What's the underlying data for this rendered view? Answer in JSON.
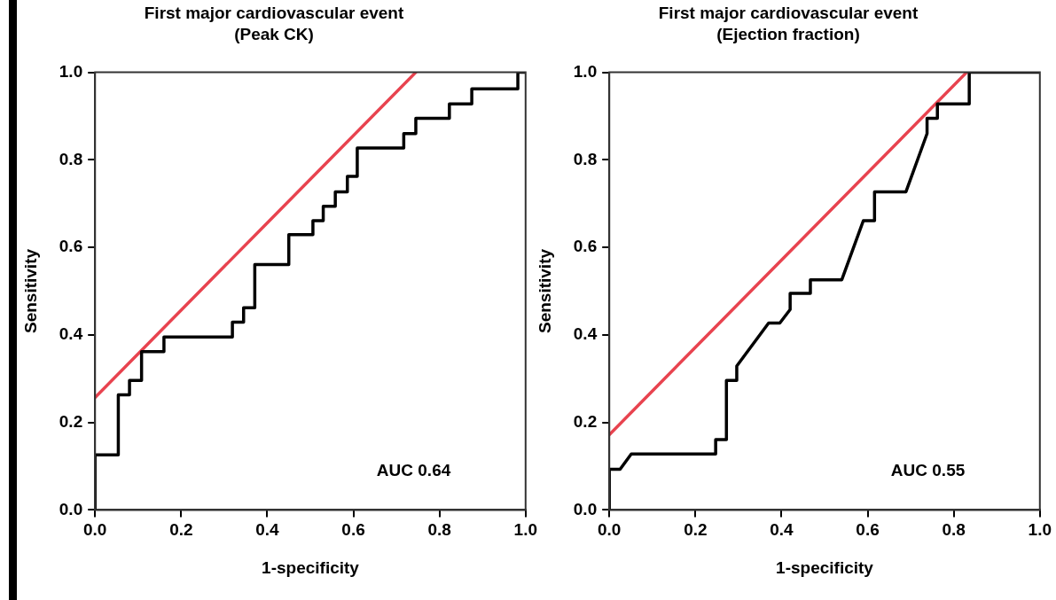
{
  "chart_data": [
    {
      "type": "line",
      "title": "First major cardiovascular event",
      "subtitle": "(Peak CK)",
      "xlabel": "1-specificity",
      "ylabel": "Sensitivity",
      "annotations": [
        "AUC 0.64"
      ],
      "xlim": [
        0,
        1
      ],
      "ylim": [
        0,
        1
      ],
      "xticks": [
        {
          "value": 0,
          "label": "0.0"
        },
        {
          "value": 0.2,
          "label": "0.2"
        },
        {
          "value": 0.4,
          "label": "0.4"
        },
        {
          "value": 0.6,
          "label": "0.6"
        },
        {
          "value": 0.8,
          "label": "0.8"
        },
        {
          "value": 1,
          "label": "1.0"
        }
      ],
      "yticks": [
        {
          "value": 0,
          "label": "0.0"
        },
        {
          "value": 0.2,
          "label": "0.2"
        },
        {
          "value": 0.4,
          "label": "0.4"
        },
        {
          "value": 0.6,
          "label": "0.6"
        },
        {
          "value": 0.8,
          "label": "0.8"
        },
        {
          "value": 1,
          "label": "1.0"
        }
      ],
      "grid": false,
      "legend": false,
      "marker": "none",
      "line_style": "solid",
      "series": [
        {
          "color": "#000000",
          "x": [
            0,
            0,
            0.054,
            0.054,
            0.08,
            0.08,
            0.108,
            0.108,
            0.16,
            0.16,
            0.319,
            0.319,
            0.345,
            0.345,
            0.371,
            0.371,
            0.45,
            0.45,
            0.506,
            0.506,
            0.53,
            0.53,
            0.558,
            0.558,
            0.586,
            0.586,
            0.609,
            0.609,
            0.717,
            0.717,
            0.745,
            0.745,
            0.823,
            0.823,
            0.875,
            0.875,
            0.982,
            0.982,
            1
          ],
          "values": [
            0,
            0.126,
            0.126,
            0.263,
            0.263,
            0.296,
            0.296,
            0.362,
            0.362,
            0.395,
            0.395,
            0.429,
            0.429,
            0.462,
            0.462,
            0.561,
            0.561,
            0.629,
            0.629,
            0.661,
            0.661,
            0.694,
            0.694,
            0.727,
            0.727,
            0.762,
            0.762,
            0.827,
            0.827,
            0.86,
            0.86,
            0.895,
            0.895,
            0.928,
            0.928,
            0.962,
            0.962,
            1,
            1
          ]
        },
        {
          "color": "#e8434f",
          "x": [
            0,
            0.745
          ],
          "values": [
            0.257,
            1
          ]
        }
      ]
    },
    {
      "type": "line",
      "title": "First major cardiovascular event",
      "subtitle": "(Ejection fraction)",
      "xlabel": "1-specificity",
      "ylabel": "Sensitivity",
      "annotations": [
        "AUC 0.55"
      ],
      "xlim": [
        0,
        1
      ],
      "ylim": [
        0,
        1
      ],
      "xticks": [
        {
          "value": 0,
          "label": "0.0"
        },
        {
          "value": 0.2,
          "label": "0.2"
        },
        {
          "value": 0.4,
          "label": "0.4"
        },
        {
          "value": 0.6,
          "label": "0.6"
        },
        {
          "value": 0.8,
          "label": "0.8"
        },
        {
          "value": 1,
          "label": "1.0"
        }
      ],
      "yticks": [
        {
          "value": 0,
          "label": "0.0"
        },
        {
          "value": 0.2,
          "label": "0.2"
        },
        {
          "value": 0.4,
          "label": "0.4"
        },
        {
          "value": 0.6,
          "label": "0.6"
        },
        {
          "value": 0.8,
          "label": "0.8"
        },
        {
          "value": 1,
          "label": "1.0"
        }
      ],
      "grid": false,
      "legend": false,
      "marker": "none",
      "line_style": "solid",
      "series": [
        {
          "color": "#000000",
          "x": [
            0,
            0,
            0.025,
            0.051,
            0.247,
            0.247,
            0.272,
            0.272,
            0.296,
            0.296,
            0.37,
            0.396,
            0.42,
            0.42,
            0.467,
            0.467,
            0.54,
            0.59,
            0.616,
            0.616,
            0.689,
            0.738,
            0.738,
            0.762,
            0.762,
            0.836,
            0.836,
            1
          ],
          "values": [
            0,
            0.093,
            0.093,
            0.128,
            0.128,
            0.161,
            0.161,
            0.296,
            0.296,
            0.329,
            0.427,
            0.427,
            0.458,
            0.495,
            0.495,
            0.526,
            0.526,
            0.661,
            0.661,
            0.727,
            0.727,
            0.86,
            0.895,
            0.895,
            0.928,
            0.928,
            1,
            1
          ]
        },
        {
          "color": "#e8434f",
          "x": [
            0,
            0.83
          ],
          "values": [
            0.172,
            1
          ]
        }
      ]
    }
  ]
}
